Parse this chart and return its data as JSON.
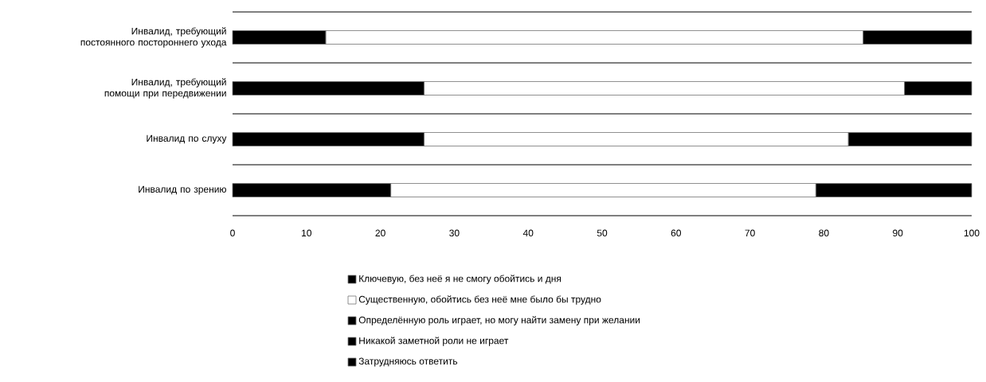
{
  "chart_data": {
    "type": "bar",
    "orientation": "horizontal",
    "stacked": true,
    "categories": [
      "Инвалид, требующий постоянного постороннего ухода",
      "Инвалид, требующий помощи при передвижении",
      "Инвалид по слуху",
      "Инвалид по зрению"
    ],
    "series": [
      {
        "name": "Ключевую, без неё я не смогу обойтись и дня",
        "color": "#000000",
        "values": [
          12.6,
          25.9,
          25.9,
          21.4
        ]
      },
      {
        "name": "Существенную, обойтись без неё мне было бы трудно",
        "color": "#ffffff",
        "values": [
          72.7,
          65.0,
          57.4,
          57.5
        ]
      },
      {
        "name": "Определённую роль играет, но могу найти замену при желании",
        "color": "#000000",
        "values": [
          14.7,
          9.1,
          16.7,
          21.1
        ]
      },
      {
        "name": "Никакой заметной роли не играет",
        "color": "#000000",
        "values": [
          null,
          null,
          null,
          null
        ]
      },
      {
        "name": "Затрудняюсь ответить",
        "color": "#000000",
        "values": [
          null,
          null,
          null,
          null
        ]
      }
    ],
    "xlim": [
      0,
      100
    ],
    "xticks": [
      0,
      10,
      20,
      30,
      40,
      50,
      60,
      70,
      80,
      90,
      100
    ],
    "grid": "y",
    "legend": "bottom"
  }
}
